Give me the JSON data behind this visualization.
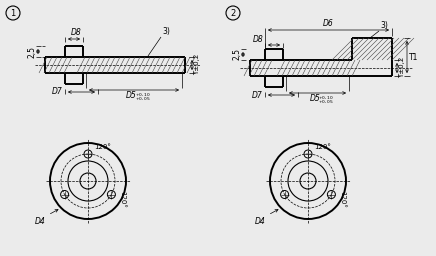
{
  "bg_color": "#ebebeb",
  "label_D8": "D8",
  "label_D7": "D7",
  "label_D5": "D5",
  "label_D4": "D4",
  "label_D6": "D6",
  "label_T02": "T±0,2",
  "label_T1": "T1",
  "label_25": "2,5",
  "label_3": "3)",
  "font_size": 5.5,
  "lw_thin": 0.5,
  "lw_med": 0.8,
  "lw_thick": 1.4
}
